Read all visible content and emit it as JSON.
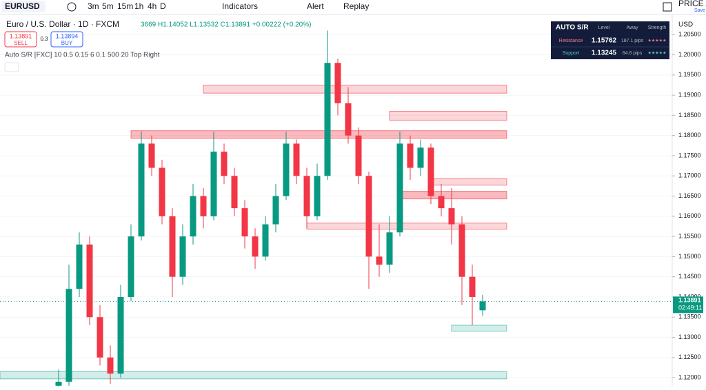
{
  "toolbar": {
    "symbol": "EURUSD",
    "intervals": [
      "3m",
      "5m",
      "15m",
      "1h",
      "4h",
      "D"
    ],
    "indicators": "Indicators",
    "alert": "Alert",
    "replay": "Replay",
    "right_label": "PRICE AC",
    "right_sub": "Save"
  },
  "legend": {
    "title": "Euro / U.S. Dollar · 1D · FXCM",
    "ohlc": "3669 H1.14052 L1.13532 C1.13891 +0.00222 (+0.20%)",
    "sell_price": "1.13891",
    "sell": "SELL",
    "spread": "0.3",
    "buy_price": "1.13894",
    "buy": "BUY",
    "indicator": "Auto S/R [FXC] 10 0.5 0.15 6 0.1 500 20 Top Right"
  },
  "panel": {
    "title": "AUTO S/R",
    "headers": [
      "Level",
      "Away",
      "Strength"
    ],
    "rows": [
      [
        "Resistance",
        "1.15762",
        "187.1 pips",
        "★★★★★"
      ],
      [
        "Support",
        "1.13245",
        "64.6 pips",
        "★★★★★"
      ]
    ]
  },
  "chart_data": {
    "type": "candlestick",
    "currency": "USD",
    "up_color": "#089981",
    "down_color": "#f23645",
    "ylim": [
      1.1178,
      1.2088
    ],
    "yticks": [
      {
        "value": 1.12,
        "label": "1.12000"
      },
      {
        "value": 1.125,
        "label": "1.12500"
      },
      {
        "value": 1.13,
        "label": "1.13000"
      },
      {
        "value": 1.135,
        "label": "1.13500"
      },
      {
        "value": 1.14,
        "label": "1.14000"
      },
      {
        "value": 1.145,
        "label": "1.14500"
      },
      {
        "value": 1.15,
        "label": "1.15000"
      },
      {
        "value": 1.155,
        "label": "1.15500"
      },
      {
        "value": 1.16,
        "label": "1.16000"
      },
      {
        "value": 1.165,
        "label": "1.16500"
      },
      {
        "value": 1.17,
        "label": "1.17000"
      },
      {
        "value": 1.175,
        "label": "1.17500"
      },
      {
        "value": 1.18,
        "label": "1.18000"
      },
      {
        "value": 1.185,
        "label": "1.18500"
      },
      {
        "value": 1.19,
        "label": "1.19000"
      },
      {
        "value": 1.195,
        "label": "1.19500"
      },
      {
        "value": 1.2,
        "label": "1.20000"
      },
      {
        "value": 1.205,
        "label": "1.20500"
      }
    ],
    "last_price": {
      "value": 1.13891,
      "label": "1.13891"
    },
    "countdown": "02:49:11",
    "candles": [
      [
        1.118,
        1.122,
        1.117,
        1.119
      ],
      [
        1.119,
        1.148,
        1.118,
        1.142
      ],
      [
        1.142,
        1.156,
        1.14,
        1.153
      ],
      [
        1.153,
        1.155,
        1.133,
        1.135
      ],
      [
        1.135,
        1.138,
        1.123,
        1.125
      ],
      [
        1.125,
        1.128,
        1.1185,
        1.121
      ],
      [
        1.121,
        1.143,
        1.12,
        1.14
      ],
      [
        1.14,
        1.158,
        1.139,
        1.155
      ],
      [
        1.155,
        1.181,
        1.154,
        1.178
      ],
      [
        1.178,
        1.18,
        1.17,
        1.172
      ],
      [
        1.172,
        1.174,
        1.158,
        1.16
      ],
      [
        1.16,
        1.162,
        1.14,
        1.145
      ],
      [
        1.145,
        1.158,
        1.143,
        1.155
      ],
      [
        1.155,
        1.168,
        1.153,
        1.165
      ],
      [
        1.165,
        1.167,
        1.157,
        1.16
      ],
      [
        1.16,
        1.181,
        1.159,
        1.176
      ],
      [
        1.176,
        1.178,
        1.168,
        1.17
      ],
      [
        1.17,
        1.172,
        1.16,
        1.162
      ],
      [
        1.162,
        1.164,
        1.152,
        1.155
      ],
      [
        1.155,
        1.157,
        1.147,
        1.15
      ],
      [
        1.15,
        1.16,
        1.149,
        1.158
      ],
      [
        1.158,
        1.168,
        1.156,
        1.165
      ],
      [
        1.165,
        1.181,
        1.164,
        1.178
      ],
      [
        1.178,
        1.179,
        1.168,
        1.17
      ],
      [
        1.17,
        1.172,
        1.157,
        1.16
      ],
      [
        1.16,
        1.173,
        1.159,
        1.17
      ],
      [
        1.17,
        1.206,
        1.169,
        1.198
      ],
      [
        1.198,
        1.199,
        1.185,
        1.188
      ],
      [
        1.188,
        1.192,
        1.178,
        1.18
      ],
      [
        1.18,
        1.182,
        1.168,
        1.17
      ],
      [
        1.17,
        1.171,
        1.142,
        1.15
      ],
      [
        1.15,
        1.158,
        1.145,
        1.148
      ],
      [
        1.148,
        1.16,
        1.146,
        1.156
      ],
      [
        1.156,
        1.181,
        1.155,
        1.178
      ],
      [
        1.178,
        1.18,
        1.169,
        1.172
      ],
      [
        1.172,
        1.179,
        1.17,
        1.177
      ],
      [
        1.177,
        1.178,
        1.163,
        1.165
      ],
      [
        1.165,
        1.168,
        1.16,
        1.162
      ],
      [
        1.162,
        1.167,
        1.153,
        1.158
      ],
      [
        1.158,
        1.16,
        1.138,
        1.145
      ],
      [
        1.145,
        1.148,
        1.133,
        1.14
      ],
      [
        1.13669,
        1.14052,
        1.13532,
        1.13891
      ]
    ],
    "zones": [
      {
        "kind": "resistance",
        "top": 1.1925,
        "bottom": 1.1905,
        "start": 14
      },
      {
        "kind": "resistance",
        "top": 1.186,
        "bottom": 1.1838,
        "start": 32
      },
      {
        "kind": "resistance",
        "top": 1.1812,
        "bottom": 1.1793,
        "start": 7,
        "strong": true
      },
      {
        "kind": "resistance",
        "top": 1.1693,
        "bottom": 1.1677,
        "start": 36
      },
      {
        "kind": "resistance",
        "top": 1.1662,
        "bottom": 1.1643,
        "start": 33,
        "strong": true
      },
      {
        "kind": "resistance",
        "top": 1.1583,
        "bottom": 1.1568,
        "start": 24
      },
      {
        "kind": "support",
        "top": 1.133,
        "bottom": 1.1315,
        "start": 38
      },
      {
        "kind": "support",
        "top": 1.1215,
        "bottom": 1.1197
      }
    ]
  }
}
